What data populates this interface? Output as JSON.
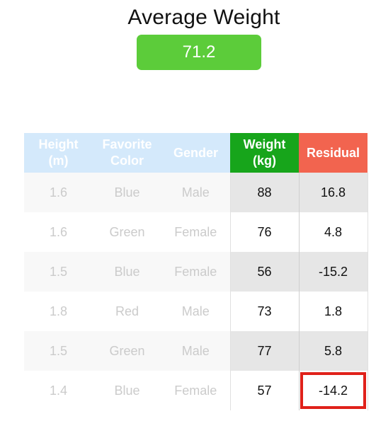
{
  "header": {
    "title": "Average Weight",
    "average_value": "71.2"
  },
  "table": {
    "headers": {
      "height": "Height\n(m)",
      "color": "Favorite\nColor",
      "gender": "Gender",
      "weight": "Weight\n(kg)",
      "residual": "Residual"
    },
    "rows": [
      {
        "height": "1.6",
        "color": "Blue",
        "gender": "Male",
        "weight": "88",
        "residual": "16.8"
      },
      {
        "height": "1.6",
        "color": "Green",
        "gender": "Female",
        "weight": "76",
        "residual": "4.8"
      },
      {
        "height": "1.5",
        "color": "Blue",
        "gender": "Female",
        "weight": "56",
        "residual": "-15.2"
      },
      {
        "height": "1.8",
        "color": "Red",
        "gender": "Male",
        "weight": "73",
        "residual": "1.8"
      },
      {
        "height": "1.5",
        "color": "Green",
        "gender": "Male",
        "weight": "77",
        "residual": "5.8"
      },
      {
        "height": "1.4",
        "color": "Blue",
        "gender": "Female",
        "weight": "57",
        "residual": "-14.2"
      }
    ]
  },
  "colors": {
    "average_badge": "#5ccc3a",
    "weight_header": "#17a51b",
    "residual_header": "#f2644f",
    "faded_header": "#d4e9fb",
    "highlight_box": "#e0211a"
  }
}
